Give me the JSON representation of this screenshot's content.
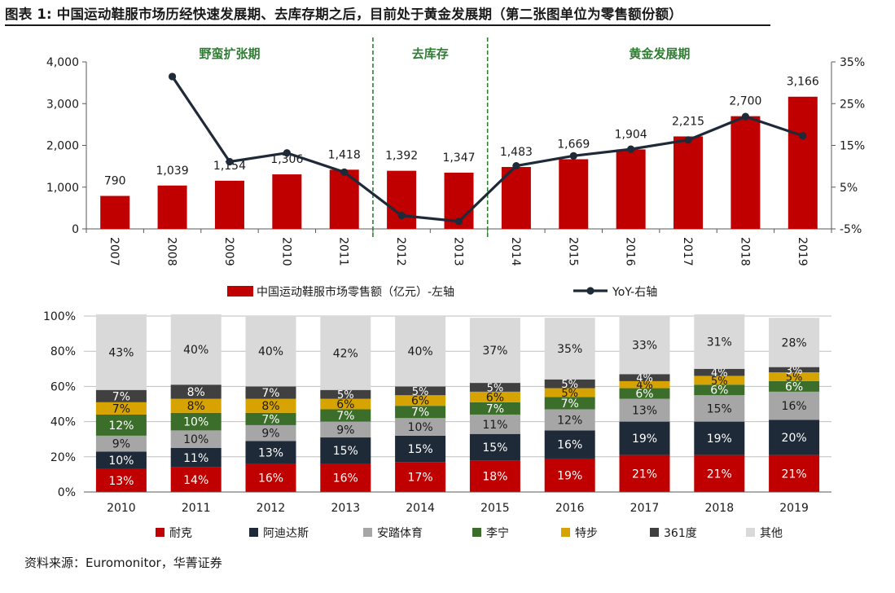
{
  "title": "图表 1: 中国运动鞋服市场历经快速发展期、去库存期之后，目前处于黄金发展期（第二张图单位为零售额份额）",
  "source": "资料来源：Euromonitor，华菁证券",
  "colors": {
    "bar_red": "#c00000",
    "line_dark": "#1f2a38",
    "phase_green": "#2e7d32",
    "grid": "#bfbfbf"
  },
  "chart_data": [
    {
      "type": "bar",
      "secondary_type": "line",
      "categories": [
        "2007",
        "2008",
        "2009",
        "2010",
        "2011",
        "2012",
        "2013",
        "2014",
        "2015",
        "2016",
        "2017",
        "2018",
        "2019"
      ],
      "series": [
        {
          "name": "中国运动鞋服市场零售额（亿元）-左轴",
          "axis": "left",
          "values": [
            790,
            1039,
            1154,
            1306,
            1418,
            1392,
            1347,
            1483,
            1669,
            1904,
            2215,
            2700,
            3166
          ],
          "labels": [
            "790",
            "1,039",
            "1,154",
            "1,306",
            "1,418",
            "1,392",
            "1,347",
            "1,483",
            "1,669",
            "1,904",
            "2,215",
            "2,700",
            "3,166"
          ]
        },
        {
          "name": "YoY-右轴",
          "axis": "right",
          "values": [
            null,
            31.5,
            11.1,
            13.2,
            8.6,
            -1.8,
            -3.2,
            10.1,
            12.5,
            14.1,
            16.3,
            21.9,
            17.3
          ]
        }
      ],
      "left_axis": {
        "ylim": [
          0,
          4000
        ],
        "ticks": [
          0,
          1000,
          2000,
          3000,
          4000
        ],
        "tick_labels": [
          "0",
          "1,000",
          "2,000",
          "3,000",
          "4,000"
        ]
      },
      "right_axis": {
        "ylim": [
          -5,
          35
        ],
        "ticks": [
          -5,
          5,
          15,
          25,
          35
        ],
        "tick_labels": [
          "-5%",
          "5%",
          "15%",
          "25%",
          "35%"
        ]
      },
      "phases": [
        {
          "label": "野蛮扩张期",
          "from": "2007",
          "to": "2011"
        },
        {
          "label": "去库存",
          "from": "2012",
          "to": "2013"
        },
        {
          "label": "黄金发展期",
          "from": "2014",
          "to": "2019"
        }
      ],
      "legend_position": "bottom"
    },
    {
      "type": "bar",
      "stacked": true,
      "categories": [
        "2010",
        "2011",
        "2012",
        "2013",
        "2014",
        "2015",
        "2016",
        "2017",
        "2018",
        "2019"
      ],
      "ylim": [
        0,
        100
      ],
      "ticks": [
        0,
        20,
        40,
        60,
        80,
        100
      ],
      "tick_labels": [
        "0%",
        "20%",
        "40%",
        "60%",
        "80%",
        "100%"
      ],
      "series": [
        {
          "name": "耐克",
          "color": "#c00000",
          "label_color": "#ffffff",
          "values": [
            13,
            14,
            16,
            16,
            17,
            18,
            19,
            21,
            21,
            21
          ]
        },
        {
          "name": "阿迪达斯",
          "color": "#1f2a38",
          "label_color": "#ffffff",
          "values": [
            10,
            11,
            13,
            15,
            15,
            15,
            16,
            19,
            19,
            20
          ]
        },
        {
          "name": "安踏体育",
          "color": "#a6a6a6",
          "label_color": "#1a1a1a",
          "values": [
            9,
            10,
            9,
            9,
            10,
            11,
            12,
            13,
            15,
            16
          ]
        },
        {
          "name": "李宁",
          "color": "#3b6e2a",
          "label_color": "#ffffff",
          "values": [
            12,
            10,
            7,
            7,
            7,
            7,
            7,
            6,
            6,
            6
          ]
        },
        {
          "name": "特步",
          "color": "#d6a300",
          "label_color": "#1a1a1a",
          "values": [
            7,
            8,
            8,
            6,
            6,
            6,
            5,
            4,
            5,
            5
          ]
        },
        {
          "name": "361度",
          "color": "#404040",
          "label_color": "#ffffff",
          "values": [
            7,
            8,
            7,
            5,
            5,
            5,
            5,
            4,
            4,
            3
          ]
        },
        {
          "name": "其他",
          "color": "#d9d9d9",
          "label_color": "#1a1a1a",
          "values": [
            43,
            40,
            40,
            42,
            40,
            37,
            35,
            33,
            31,
            28
          ]
        }
      ],
      "legend_position": "bottom"
    }
  ]
}
